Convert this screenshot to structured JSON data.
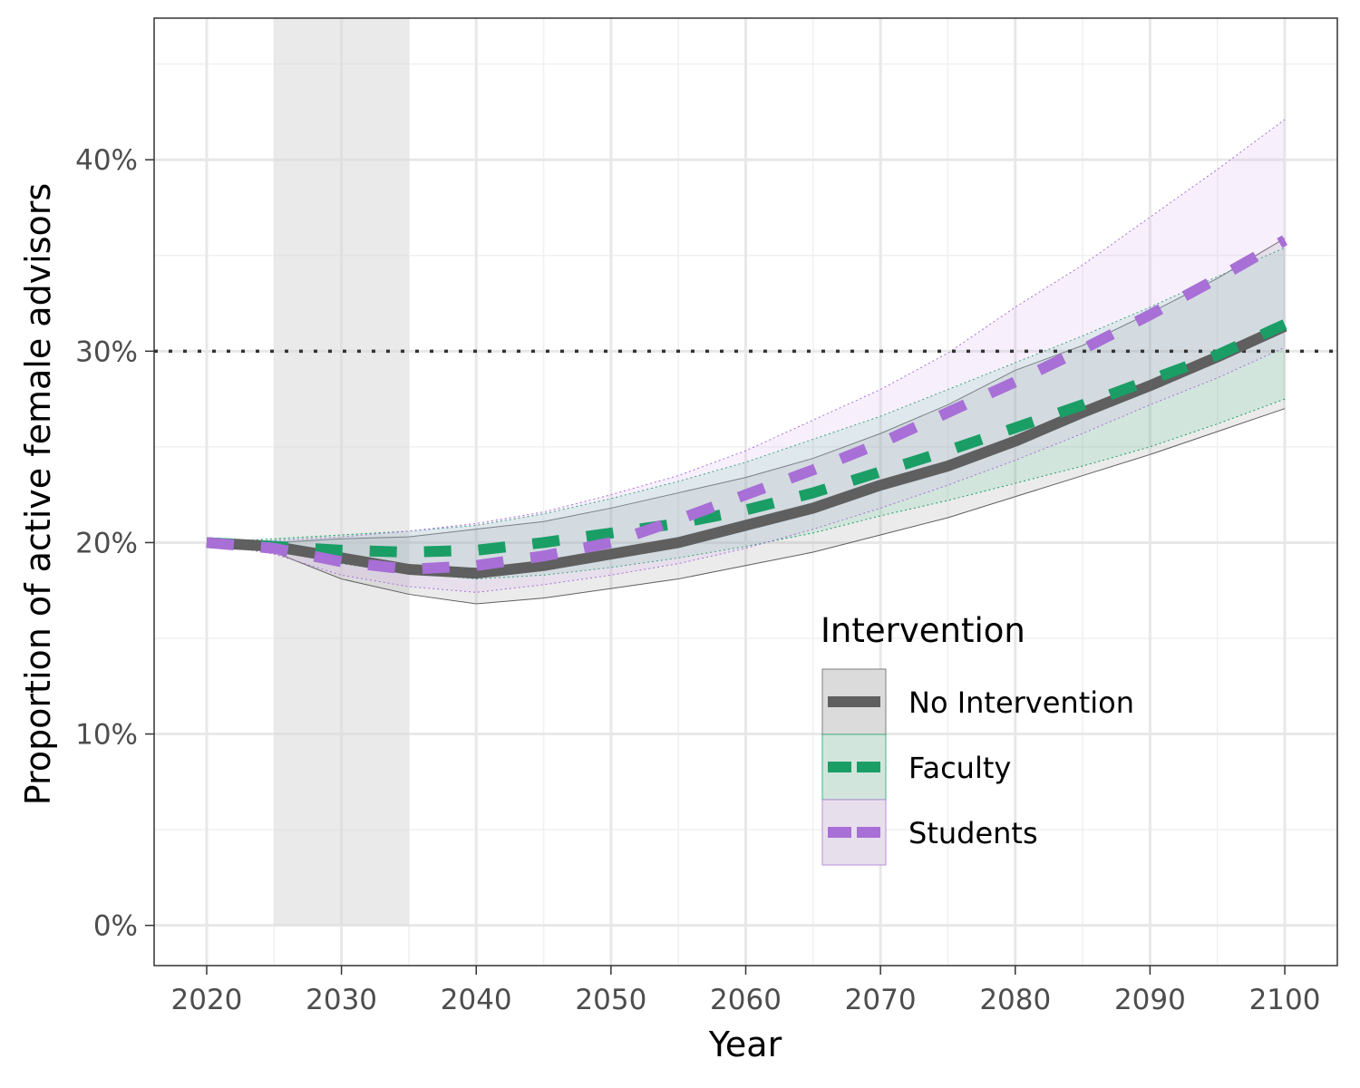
{
  "chart_data": {
    "type": "line",
    "xlabel": "Year",
    "ylabel": "Proportion of active female advisors",
    "xlim": [
      2016.1,
      2103.9
    ],
    "ylim": [
      -2.1,
      47.4
    ],
    "xticks": [
      2020,
      2030,
      2040,
      2050,
      2060,
      2070,
      2080,
      2090,
      2100
    ],
    "xtick_labels": [
      "2020",
      "2030",
      "2040",
      "2050",
      "2060",
      "2070",
      "2080",
      "2090",
      "2100"
    ],
    "yticks": [
      0,
      10,
      20,
      30,
      40
    ],
    "ytick_labels": [
      "0%",
      "10%",
      "20%",
      "30%",
      "40%"
    ],
    "grid": true,
    "shaded_region": [
      2025,
      2035
    ],
    "reference_line": 30,
    "legend": {
      "title": "Intervention",
      "placement": "bottom-right"
    },
    "x": [
      2020,
      2025,
      2030,
      2035,
      2040,
      2045,
      2050,
      2055,
      2060,
      2065,
      2070,
      2075,
      2080,
      2085,
      2090,
      2095,
      2100
    ],
    "series": [
      {
        "name": "No Intervention",
        "color": "#5f5f5f",
        "dash": "solid",
        "values": [
          20,
          19.8,
          19.2,
          18.6,
          18.4,
          18.8,
          19.4,
          20.0,
          20.9,
          21.8,
          23.0,
          24.0,
          25.3,
          26.8,
          28.2,
          29.7,
          31.3
        ],
        "lower": [
          20,
          19.5,
          18.1,
          17.3,
          16.8,
          17.1,
          17.6,
          18.1,
          18.8,
          19.5,
          20.4,
          21.3,
          22.4,
          23.5,
          24.6,
          25.8,
          27.0
        ],
        "upper": [
          20,
          20.0,
          20.2,
          20.3,
          20.7,
          21.1,
          21.8,
          22.6,
          23.4,
          24.4,
          25.7,
          27.2,
          29.0,
          30.3,
          32.0,
          33.8,
          35.9
        ],
        "fill": "#9a9a9a"
      },
      {
        "name": "Faculty",
        "color": "#1a9e66",
        "dash": "dashed",
        "values": [
          20,
          19.8,
          19.6,
          19.5,
          19.6,
          20.0,
          20.5,
          21.0,
          21.7,
          22.6,
          23.7,
          24.8,
          26.0,
          27.2,
          28.5,
          29.8,
          31.4
        ],
        "lower": [
          20,
          19.6,
          18.9,
          18.4,
          18.1,
          18.3,
          18.7,
          19.2,
          19.8,
          20.5,
          21.4,
          22.2,
          23.1,
          24.0,
          25.0,
          26.2,
          27.5
        ],
        "upper": [
          20,
          20.2,
          20.4,
          20.6,
          20.9,
          21.5,
          22.3,
          23.2,
          24.2,
          25.4,
          26.6,
          28.0,
          29.4,
          30.8,
          32.3,
          33.9,
          35.4
        ],
        "fill": "#6ccf9f"
      },
      {
        "name": "Students",
        "color": "#a86fd6",
        "dash": "dashed",
        "values": [
          20,
          19.7,
          19.0,
          18.6,
          18.8,
          19.3,
          20.0,
          21.2,
          22.5,
          23.8,
          25.2,
          26.8,
          28.4,
          30.1,
          31.9,
          33.8,
          35.8
        ],
        "lower": [
          20,
          19.4,
          18.3,
          17.7,
          17.4,
          17.8,
          18.3,
          18.9,
          19.7,
          20.7,
          21.8,
          23.0,
          24.3,
          25.7,
          27.2,
          28.6,
          30.2
        ],
        "upper": [
          20,
          20.1,
          20.3,
          20.6,
          21.0,
          21.6,
          22.5,
          23.5,
          24.8,
          26.4,
          28.0,
          29.9,
          32.3,
          34.5,
          37.0,
          39.5,
          42.1
        ],
        "fill": "#d7b6f0"
      }
    ]
  }
}
